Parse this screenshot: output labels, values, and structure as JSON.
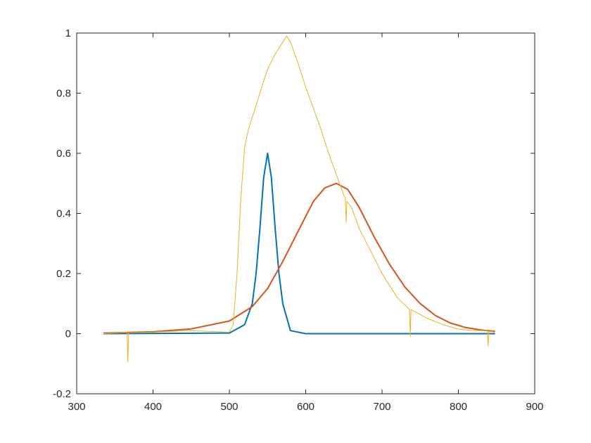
{
  "chart_data": {
    "type": "line",
    "title": "",
    "xlabel": "",
    "ylabel": "",
    "xlim": [
      300,
      900
    ],
    "ylim": [
      -0.2,
      1
    ],
    "xticks": [
      300,
      400,
      500,
      600,
      700,
      800,
      900
    ],
    "yticks": [
      -0.2,
      0,
      0.2,
      0.4,
      0.6,
      0.8,
      1
    ],
    "xtick_labels": [
      "300",
      "400",
      "500",
      "600",
      "700",
      "800",
      "900"
    ],
    "ytick_labels": [
      "-0.2",
      "0",
      "0.2",
      "0.4",
      "0.6",
      "0.8",
      "1"
    ],
    "grid": false,
    "legend": "none",
    "series": [
      {
        "color": "#0072BD",
        "x": [
          335,
          500,
          520,
          530,
          535,
          540,
          545,
          550,
          555,
          560,
          565,
          570,
          580,
          600,
          700,
          848
        ],
        "y": [
          0,
          0.002,
          0.03,
          0.1,
          0.2,
          0.35,
          0.52,
          0.6,
          0.52,
          0.35,
          0.2,
          0.1,
          0.01,
          0,
          0,
          0
        ]
      },
      {
        "color": "#D95319",
        "x": [
          335,
          400,
          450,
          500,
          530,
          550,
          570,
          590,
          610,
          625,
          640,
          655,
          670,
          690,
          710,
          730,
          750,
          770,
          790,
          810,
          830,
          848
        ],
        "y": [
          0.002,
          0.006,
          0.016,
          0.042,
          0.09,
          0.15,
          0.24,
          0.34,
          0.44,
          0.485,
          0.5,
          0.48,
          0.42,
          0.32,
          0.23,
          0.155,
          0.1,
          0.06,
          0.035,
          0.02,
          0.012,
          0.008
        ]
      },
      {
        "color": "#EDB120",
        "x": [
          335,
          366,
          367,
          368,
          400,
          450,
          500,
          505,
          510,
          515,
          520,
          525,
          530,
          540,
          550,
          560,
          570,
          575,
          580,
          590,
          600,
          610,
          620,
          630,
          640,
          650,
          652,
          653,
          654,
          660,
          670,
          680,
          690,
          700,
          720,
          736,
          737,
          738,
          760,
          780,
          800,
          820,
          838,
          839,
          840,
          848
        ],
        "y": [
          0.0,
          0.005,
          -0.095,
          0.003,
          0.005,
          0.01,
          0.005,
          0.03,
          0.2,
          0.45,
          0.62,
          0.68,
          0.72,
          0.8,
          0.88,
          0.93,
          0.97,
          0.99,
          0.97,
          0.9,
          0.82,
          0.75,
          0.68,
          0.6,
          0.53,
          0.46,
          0.45,
          0.37,
          0.44,
          0.42,
          0.35,
          0.3,
          0.25,
          0.2,
          0.12,
          0.08,
          -0.01,
          0.08,
          0.05,
          0.03,
          0.015,
          0.01,
          0.01,
          -0.04,
          0.008,
          0.005
        ]
      }
    ]
  }
}
